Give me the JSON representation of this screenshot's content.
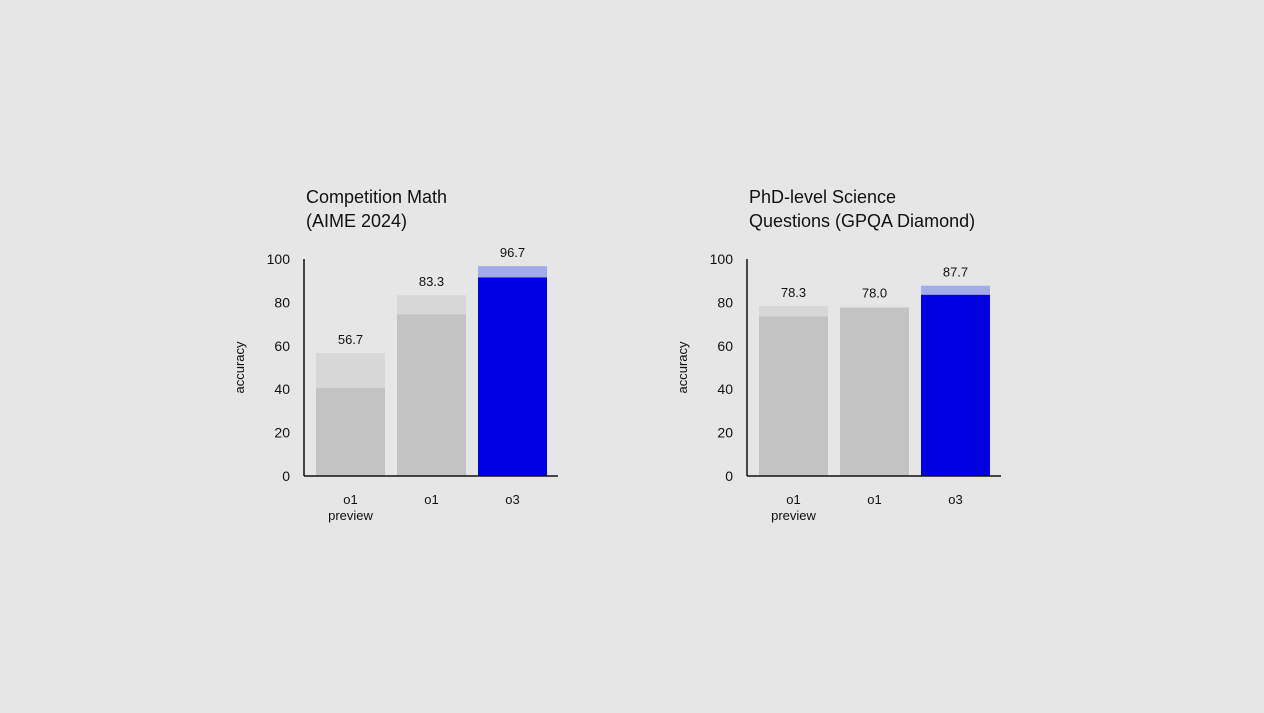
{
  "colors": {
    "background": "#e6e6e6",
    "bar_gray_base": "#c3c3c3",
    "bar_gray_extra": "#d7d7d7",
    "bar_blue_base": "#0000e0",
    "bar_blue_extra": "#a3abe8",
    "axis": "#111111"
  },
  "chart_data": [
    {
      "type": "bar",
      "title_lines": [
        "Competition Math",
        "(AIME 2024)"
      ],
      "ylabel": "accuracy",
      "xlabel": "",
      "ylim": [
        0,
        100
      ],
      "yticks": [
        "0",
        "20",
        "40",
        "60",
        "80",
        "100"
      ],
      "categories": [
        [
          "o1",
          "preview"
        ],
        [
          "o1"
        ],
        [
          "o3"
        ]
      ],
      "grid": false,
      "series": [
        {
          "values": [
            40.5,
            74.5,
            91.5
          ]
        },
        {
          "values": [
            56.7,
            83.3,
            96.7
          ]
        }
      ],
      "value_labels": [
        "56.7",
        "83.3",
        "96.7"
      ],
      "highlight_index": 2
    },
    {
      "type": "bar",
      "title_lines": [
        "PhD-level Science",
        "Questions (GPQA Diamond)"
      ],
      "ylabel": "accuracy",
      "xlabel": "",
      "ylim": [
        0,
        100
      ],
      "yticks": [
        "0",
        "20",
        "40",
        "60",
        "80",
        "100"
      ],
      "categories": [
        [
          "o1",
          "preview"
        ],
        [
          "o1"
        ],
        [
          "o3"
        ]
      ],
      "grid": false,
      "series": [
        {
          "values": [
            73.5,
            77.5,
            83.5
          ]
        },
        {
          "values": [
            78.3,
            78.0,
            87.7
          ]
        }
      ],
      "value_labels": [
        "78.3",
        "78.0",
        "87.7"
      ],
      "highlight_index": 2
    }
  ]
}
